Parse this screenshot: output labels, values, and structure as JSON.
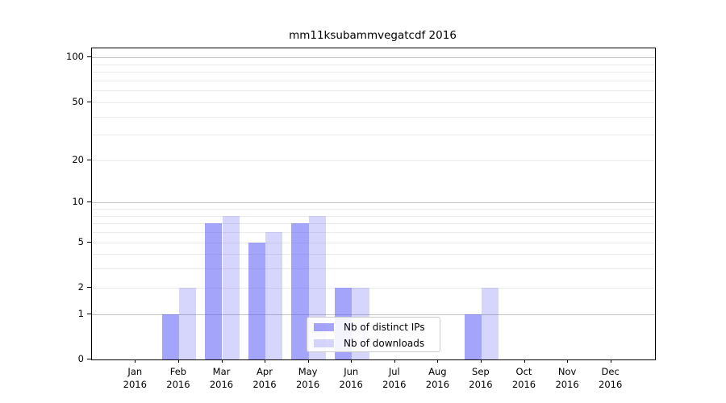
{
  "title": "mm11ksubammvegatcdf 2016",
  "chart_data": {
    "type": "bar",
    "title": "mm11ksubammvegatcdf 2016",
    "categories": [
      "Jan",
      "Feb",
      "Mar",
      "Apr",
      "May",
      "Jun",
      "Jul",
      "Aug",
      "Sep",
      "Oct",
      "Nov",
      "Dec"
    ],
    "year": "2016",
    "series": [
      {
        "name": "Nb of distinct IPs",
        "values": [
          0,
          1,
          7,
          5,
          7,
          2,
          0,
          0,
          1,
          0,
          0,
          0
        ],
        "color": "rgba(90,90,245,0.55)"
      },
      {
        "name": "Nb of downloads",
        "values": [
          0,
          2,
          8,
          6,
          8,
          2,
          0,
          0,
          2,
          0,
          0,
          0
        ],
        "color": "rgba(90,90,245,0.25)"
      }
    ],
    "xlabel": "",
    "ylabel": "",
    "yscale": "log1p",
    "ylim": [
      0,
      115
    ],
    "yticks": [
      0,
      1,
      2,
      5,
      10,
      20,
      50,
      100
    ],
    "major_gridlines": [
      1,
      10,
      100
    ],
    "minor_gridlines": [
      2,
      3,
      4,
      5,
      6,
      7,
      8,
      9,
      20,
      30,
      40,
      50,
      60,
      70,
      80,
      90
    ],
    "grid": true,
    "legend_position": "lower center",
    "colors": {
      "bar_distinct_ips": "rgba(90,90,245,0.55)",
      "bar_downloads": "rgba(90,90,245,0.25)",
      "grid_major": "#c3c3c3",
      "grid_minor": "#ebebeb",
      "axis": "#000000",
      "background": "#ffffff",
      "legend_border": "#cccccc"
    }
  }
}
